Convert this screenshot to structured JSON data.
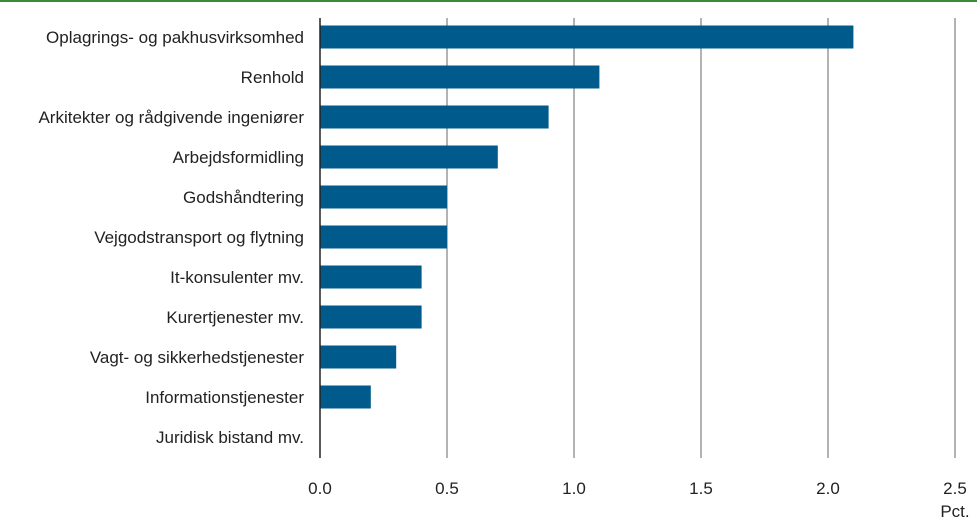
{
  "chart_data": {
    "type": "bar",
    "orientation": "horizontal",
    "categories": [
      "Oplagrings- og pakhusvirksomhed",
      "Renhold",
      "Arkitekter og rådgivende ingeniører",
      "Arbejdsformidling",
      "Godshåndtering",
      "Vejgodstransport og flytning",
      "It-konsulenter mv.",
      "Kurertjenester mv.",
      "Vagt- og sikkerhedstjenester",
      "Informationstjenester",
      "Juridisk bistand mv."
    ],
    "values": [
      2.1,
      1.1,
      0.9,
      0.7,
      0.5,
      0.5,
      0.4,
      0.4,
      0.3,
      0.2,
      0.0
    ],
    "xlim": [
      0,
      2.5
    ],
    "xticks": [
      "0.0",
      "0.5",
      "1.0",
      "1.5",
      "2.0",
      "2.5"
    ],
    "unit_label": "Pct.",
    "grid": "vertical",
    "bar_color": "#005b8c",
    "grid_color": "#9a9a9a",
    "top_rule_color": "#3a8a3a"
  }
}
